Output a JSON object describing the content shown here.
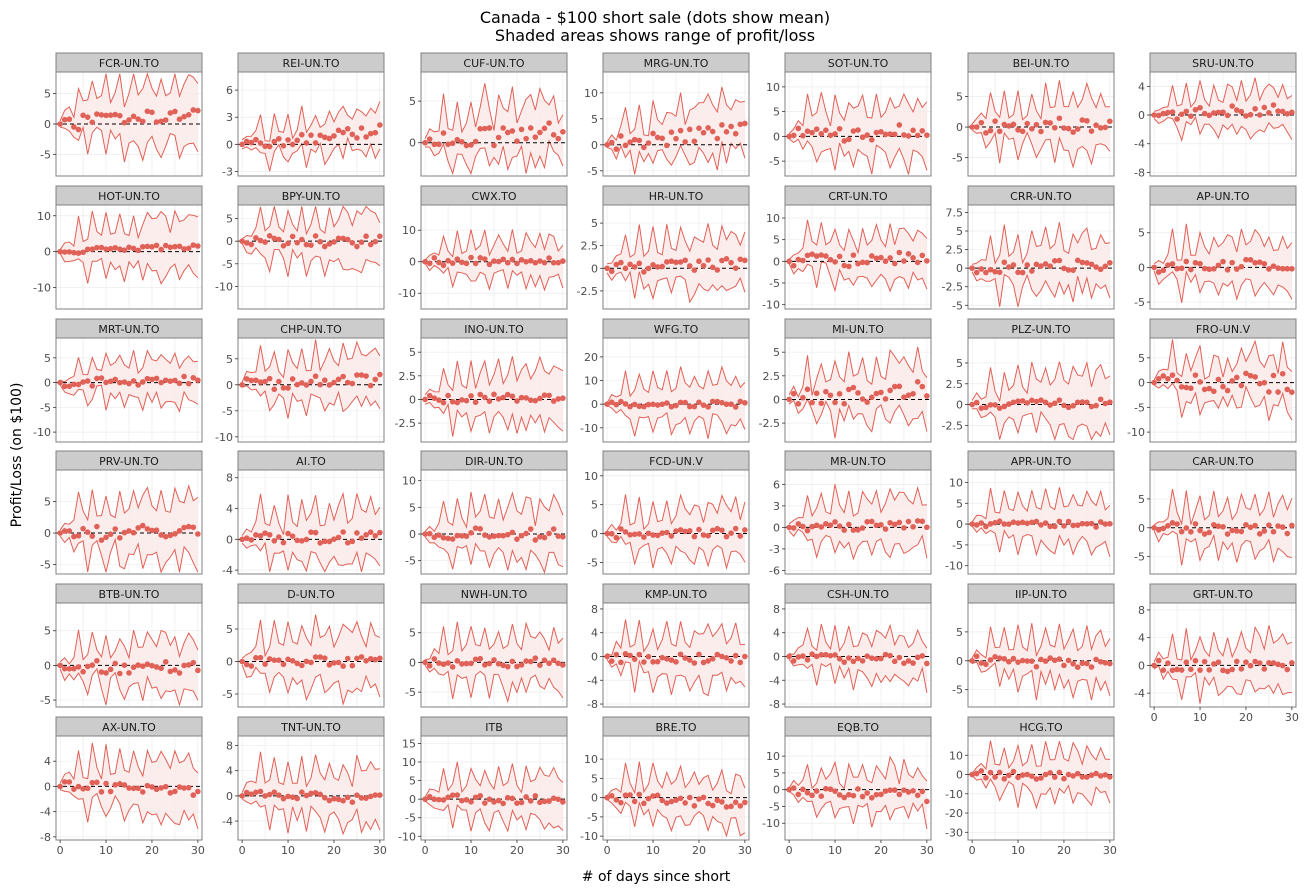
{
  "chart_data": {
    "type": "line",
    "title_line1": "Canada - $100 short sale (dots show mean)",
    "title_line2": "Shaded areas shows range of profit/loss",
    "xlabel": "# of days since short",
    "ylabel": "Profit/Loss (on $100)",
    "xlim": [
      0,
      30
    ],
    "x_ticks": [
      0,
      10,
      20,
      30
    ],
    "colors": {
      "series": "#e06157",
      "fill": "#fbe9e8",
      "strip_bg": "#cccccc",
      "strip_border": "#808080",
      "grid": "#ececec",
      "zero_line": "#000000"
    },
    "facets": [
      {
        "name": "FCR-UN.TO",
        "ylim": [
          -8.5,
          8.5
        ],
        "ticks": [
          -5,
          0,
          5
        ],
        "amp": 7,
        "mean_amp": 1.5,
        "trend": 2,
        "seed": 1
      },
      {
        "name": "REI-UN.TO",
        "ylim": [
          -3.5,
          8
        ],
        "ticks": [
          -3,
          0,
          3,
          6
        ],
        "amp": 3,
        "mean_amp": 0.8,
        "trend": 1.5,
        "seed": 2
      },
      {
        "name": "CUF-UN.TO",
        "ylim": [
          -4,
          8.5
        ],
        "ticks": [
          0,
          5
        ],
        "amp": 5,
        "mean_amp": 1.5,
        "trend": 1.5,
        "seed": 3
      },
      {
        "name": "MRG-UN.TO",
        "ylim": [
          -6,
          14
        ],
        "ticks": [
          -5,
          0,
          5,
          10
        ],
        "amp": 7,
        "mean_amp": 2,
        "trend": 3,
        "seed": 4
      },
      {
        "name": "SOT-UN.TO",
        "ylim": [
          -8,
          13
        ],
        "ticks": [
          -5,
          0,
          5,
          10
        ],
        "amp": 8,
        "mean_amp": 2,
        "trend": 1,
        "seed": 5
      },
      {
        "name": "BEI-UN.TO",
        "ylim": [
          -8,
          9
        ],
        "ticks": [
          -5,
          0,
          5
        ],
        "amp": 6,
        "mean_amp": 1.5,
        "trend": 0.5,
        "seed": 6
      },
      {
        "name": "SRU-UN.TO",
        "ylim": [
          -8.5,
          6
        ],
        "ticks": [
          -8,
          -4,
          0,
          4
        ],
        "amp": 4,
        "mean_amp": 1,
        "trend": 1,
        "seed": 7
      },
      {
        "name": "HOT-UN.TO",
        "ylim": [
          -16,
          13
        ],
        "ticks": [
          -10,
          0,
          10
        ],
        "amp": 10,
        "mean_amp": 1,
        "trend": 1.5,
        "seed": 8
      },
      {
        "name": "BPY-UN.TO",
        "ylim": [
          -15,
          8
        ],
        "ticks": [
          -10,
          -5,
          0,
          5
        ],
        "amp": 8,
        "mean_amp": 1.5,
        "trend": 0,
        "seed": 9
      },
      {
        "name": "CWX.TO",
        "ylim": [
          -15,
          18
        ],
        "ticks": [
          -10,
          0,
          10
        ],
        "amp": 9,
        "mean_amp": 1.5,
        "trend": 0.5,
        "seed": 10
      },
      {
        "name": "HR-UN.TO",
        "ylim": [
          -4.5,
          7
        ],
        "ticks": [
          -2.5,
          0,
          2.5,
          5
        ],
        "amp": 4,
        "mean_amp": 0.8,
        "trend": 0.5,
        "seed": 11
      },
      {
        "name": "CRT-UN.TO",
        "ylim": [
          -11,
          13
        ],
        "ticks": [
          -10,
          -5,
          0,
          5,
          10
        ],
        "amp": 8,
        "mean_amp": 2,
        "trend": 1,
        "seed": 12
      },
      {
        "name": "CRR-UN.TO",
        "ylim": [
          -5.5,
          8.5
        ],
        "ticks": [
          -5,
          -2.5,
          0,
          2.5,
          5,
          7.5
        ],
        "amp": 5,
        "mean_amp": 1,
        "trend": 0.5,
        "seed": 13
      },
      {
        "name": "AP-UN.TO",
        "ylim": [
          -6,
          9
        ],
        "ticks": [
          -5,
          0,
          5
        ],
        "amp": 5,
        "mean_amp": 1,
        "trend": 0.5,
        "seed": 14
      },
      {
        "name": "MRT-UN.TO",
        "ylim": [
          -12,
          9
        ],
        "ticks": [
          -10,
          -5,
          0,
          5
        ],
        "amp": 6,
        "mean_amp": 1,
        "trend": 0.5,
        "seed": 15
      },
      {
        "name": "CHP-UN.TO",
        "ylim": [
          -11,
          9
        ],
        "ticks": [
          -10,
          -5,
          0,
          5
        ],
        "amp": 7,
        "mean_amp": 1.5,
        "trend": 1,
        "seed": 16
      },
      {
        "name": "INO-UN.TO",
        "ylim": [
          -4.5,
          6.5
        ],
        "ticks": [
          -2.5,
          0,
          2.5,
          5
        ],
        "amp": 4,
        "mean_amp": 0.6,
        "trend": 0.3,
        "seed": 17
      },
      {
        "name": "WFG.TO",
        "ylim": [
          -16,
          28
        ],
        "ticks": [
          -10,
          0,
          10,
          20
        ],
        "amp": 14,
        "mean_amp": 1.5,
        "trend": 0,
        "seed": 18
      },
      {
        "name": "MI-UN.TO",
        "ylim": [
          -4.5,
          6.5
        ],
        "ticks": [
          -2.5,
          0,
          2.5,
          5
        ],
        "amp": 4,
        "mean_amp": 1.2,
        "trend": 1,
        "seed": 19
      },
      {
        "name": "PLZ-UN.TO",
        "ylim": [
          -4.5,
          8
        ],
        "ticks": [
          -2.5,
          0,
          2.5,
          5
        ],
        "amp": 4.5,
        "mean_amp": 0.6,
        "trend": 0.2,
        "seed": 20
      },
      {
        "name": "FRO-UN.V",
        "ylim": [
          -12,
          9
        ],
        "ticks": [
          -10,
          -5,
          0,
          5
        ],
        "amp": 7,
        "mean_amp": 2.5,
        "trend": 0,
        "seed": 21
      },
      {
        "name": "PRV-UN.TO",
        "ylim": [
          -6.5,
          10
        ],
        "ticks": [
          -5,
          0,
          5
        ],
        "amp": 7,
        "mean_amp": 1.5,
        "trend": 0,
        "seed": 22
      },
      {
        "name": "AI.TO",
        "ylim": [
          -4.5,
          9
        ],
        "ticks": [
          -4,
          0,
          4,
          8
        ],
        "amp": 5,
        "mean_amp": 1,
        "trend": 0.3,
        "seed": 23
      },
      {
        "name": "DIR-UN.TO",
        "ylim": [
          -7.5,
          12
        ],
        "ticks": [
          -5,
          0,
          5,
          10
        ],
        "amp": 7,
        "mean_amp": 1.5,
        "trend": 0,
        "seed": 24
      },
      {
        "name": "FCD-UN.V",
        "ylim": [
          -7,
          11
        ],
        "ticks": [
          -5,
          0,
          5,
          10
        ],
        "amp": 6,
        "mean_amp": 1,
        "trend": 0.3,
        "seed": 25
      },
      {
        "name": "MR-UN.TO",
        "ylim": [
          -6.5,
          8
        ],
        "ticks": [
          -6,
          -3,
          0,
          3,
          6
        ],
        "amp": 5,
        "mean_amp": 0.8,
        "trend": 0.5,
        "seed": 26
      },
      {
        "name": "APR-UN.TO",
        "ylim": [
          -12,
          13
        ],
        "ticks": [
          -10,
          -5,
          0,
          5,
          10
        ],
        "amp": 8,
        "mean_amp": 1,
        "trend": 0,
        "seed": 27
      },
      {
        "name": "CAR-UN.TO",
        "ylim": [
          -8,
          10
        ],
        "ticks": [
          -5,
          0,
          5
        ],
        "amp": 6,
        "mean_amp": 1.2,
        "trend": -0.5,
        "seed": 28
      },
      {
        "name": "BTB-UN.TO",
        "ylim": [
          -6,
          9
        ],
        "ticks": [
          -5,
          0,
          5
        ],
        "amp": 5,
        "mean_amp": 1.2,
        "trend": -0.5,
        "seed": 29
      },
      {
        "name": "D-UN.TO",
        "ylim": [
          -7,
          9
        ],
        "ticks": [
          -5,
          0,
          5
        ],
        "amp": 6,
        "mean_amp": 1,
        "trend": 0,
        "seed": 30
      },
      {
        "name": "NWH-UN.TO",
        "ylim": [
          -7.5,
          10
        ],
        "ticks": [
          -5,
          0,
          5
        ],
        "amp": 6,
        "mean_amp": 1,
        "trend": 0,
        "seed": 31
      },
      {
        "name": "KMP-UN.TO",
        "ylim": [
          -8.5,
          9
        ],
        "ticks": [
          -8,
          -4,
          0,
          4,
          8
        ],
        "amp": 6,
        "mean_amp": 1.2,
        "trend": -0.3,
        "seed": 32
      },
      {
        "name": "CSH-UN.TO",
        "ylim": [
          -8.5,
          9
        ],
        "ticks": [
          -8,
          -4,
          0,
          4,
          8
        ],
        "amp": 5,
        "mean_amp": 1,
        "trend": -0.5,
        "seed": 33
      },
      {
        "name": "IIP-UN.TO",
        "ylim": [
          -8,
          10
        ],
        "ticks": [
          -5,
          0,
          5
        ],
        "amp": 6,
        "mean_amp": 1,
        "trend": -0.5,
        "seed": 34
      },
      {
        "name": "GRT-UN.TO",
        "ylim": [
          -6,
          9
        ],
        "ticks": [
          -4,
          0,
          4,
          8
        ],
        "amp": 5,
        "mean_amp": 1,
        "trend": -0.3,
        "seed": 35
      },
      {
        "name": "AX-UN.TO",
        "ylim": [
          -8.5,
          8
        ],
        "ticks": [
          -8,
          -4,
          0,
          4
        ],
        "amp": 6,
        "mean_amp": 1.2,
        "trend": -0.5,
        "seed": 36
      },
      {
        "name": "TNT-UN.TO",
        "ylim": [
          -7,
          9.5
        ],
        "ticks": [
          -4,
          0,
          4,
          8
        ],
        "amp": 6,
        "mean_amp": 1,
        "trend": -0.3,
        "seed": 37
      },
      {
        "name": "ITB",
        "ylim": [
          -11,
          17
        ],
        "ticks": [
          -10,
          -5,
          0,
          5,
          10,
          15
        ],
        "amp": 9,
        "mean_amp": 1.5,
        "trend": 0,
        "seed": 38
      },
      {
        "name": "BRE.TO",
        "ylim": [
          -11,
          16
        ],
        "ticks": [
          -10,
          -5,
          0,
          5,
          10
        ],
        "amp": 8,
        "mean_amp": 1.5,
        "trend": -1.5,
        "seed": 39
      },
      {
        "name": "EQB.TO",
        "ylim": [
          -15,
          16
        ],
        "ticks": [
          -10,
          -5,
          0,
          5,
          10
        ],
        "amp": 9,
        "mean_amp": 2,
        "trend": -2,
        "seed": 40
      },
      {
        "name": "HCG.TO",
        "ylim": [
          -34,
          20
        ],
        "ticks": [
          -30,
          -20,
          -10,
          0,
          10
        ],
        "amp": 16,
        "mean_amp": 3,
        "trend": -1,
        "seed": 41
      }
    ]
  }
}
